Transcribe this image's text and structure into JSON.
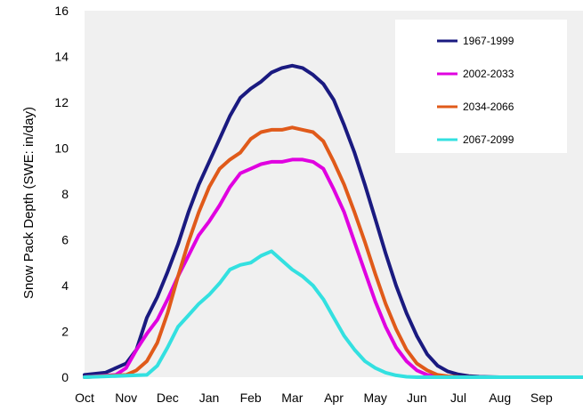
{
  "chart_data": {
    "type": "line",
    "title": "",
    "xlabel": "",
    "ylabel": "Snow Pack Depth (SWE: in/day)",
    "ylim": [
      0,
      16
    ],
    "xlim": [
      0,
      12
    ],
    "yticks": [
      0,
      2,
      4,
      6,
      8,
      10,
      12,
      14,
      16
    ],
    "xtick_labels": [
      "Oct",
      "Nov",
      "Dec",
      "Jan",
      "Feb",
      "Mar",
      "Apr",
      "May",
      "Jun",
      "Jul",
      "Aug",
      "Sep"
    ],
    "grid": false,
    "legend_position": "top-right",
    "plot_background": "#f0f0f0",
    "series": [
      {
        "name": "1967-1999",
        "color": "#1a1a80",
        "x": [
          0,
          0.5,
          1.0,
          1.25,
          1.5,
          1.75,
          2.0,
          2.25,
          2.5,
          2.75,
          3.0,
          3.25,
          3.5,
          3.75,
          4.0,
          4.25,
          4.5,
          4.75,
          5.0,
          5.25,
          5.5,
          5.75,
          6.0,
          6.25,
          6.5,
          6.75,
          7.0,
          7.25,
          7.5,
          7.75,
          8.0,
          8.25,
          8.5,
          8.75,
          9.0,
          9.25,
          9.5,
          10.0,
          10.5,
          11.0,
          12.0
        ],
        "y": [
          0.1,
          0.2,
          0.6,
          1.2,
          2.6,
          3.5,
          4.6,
          5.8,
          7.2,
          8.4,
          9.4,
          10.4,
          11.4,
          12.2,
          12.6,
          12.9,
          13.3,
          13.5,
          13.6,
          13.5,
          13.2,
          12.8,
          12.1,
          11.0,
          9.8,
          8.4,
          6.9,
          5.4,
          4.0,
          2.8,
          1.8,
          1.0,
          0.5,
          0.25,
          0.12,
          0.05,
          0.02,
          0,
          0,
          0,
          0
        ]
      },
      {
        "name": "2002-2033",
        "color": "#e000e0",
        "x": [
          0,
          0.75,
          1.0,
          1.25,
          1.5,
          1.75,
          2.0,
          2.25,
          2.5,
          2.75,
          3.0,
          3.25,
          3.5,
          3.75,
          4.0,
          4.25,
          4.5,
          4.75,
          5.0,
          5.25,
          5.5,
          5.75,
          6.0,
          6.25,
          6.5,
          6.75,
          7.0,
          7.25,
          7.5,
          7.75,
          8.0,
          8.25,
          8.5,
          9.0,
          12.0
        ],
        "y": [
          0,
          0.1,
          0.4,
          1.2,
          1.9,
          2.5,
          3.4,
          4.4,
          5.3,
          6.2,
          6.8,
          7.5,
          8.3,
          8.9,
          9.1,
          9.3,
          9.4,
          9.4,
          9.5,
          9.5,
          9.4,
          9.1,
          8.2,
          7.2,
          5.9,
          4.6,
          3.3,
          2.2,
          1.3,
          0.7,
          0.3,
          0.1,
          0.03,
          0,
          0
        ]
      },
      {
        "name": "2034-2066",
        "color": "#e05a1a",
        "x": [
          0,
          1.0,
          1.25,
          1.5,
          1.75,
          2.0,
          2.25,
          2.5,
          2.75,
          3.0,
          3.25,
          3.5,
          3.75,
          4.0,
          4.25,
          4.5,
          4.75,
          5.0,
          5.25,
          5.5,
          5.75,
          6.0,
          6.25,
          6.5,
          6.75,
          7.0,
          7.25,
          7.5,
          7.75,
          8.0,
          8.25,
          8.5,
          8.75,
          9.0,
          9.5,
          12.0
        ],
        "y": [
          0,
          0.1,
          0.3,
          0.7,
          1.5,
          2.8,
          4.4,
          5.9,
          7.2,
          8.3,
          9.1,
          9.5,
          9.8,
          10.4,
          10.7,
          10.8,
          10.8,
          10.9,
          10.8,
          10.7,
          10.3,
          9.4,
          8.4,
          7.2,
          5.9,
          4.5,
          3.2,
          2.1,
          1.2,
          0.6,
          0.3,
          0.1,
          0.04,
          0.01,
          0,
          0
        ]
      },
      {
        "name": "2067-2099",
        "color": "#33e0e0",
        "x": [
          0,
          1.5,
          1.75,
          2.0,
          2.25,
          2.5,
          2.75,
          3.0,
          3.25,
          3.5,
          3.75,
          4.0,
          4.25,
          4.5,
          4.75,
          5.0,
          5.25,
          5.5,
          5.75,
          6.0,
          6.25,
          6.5,
          6.75,
          7.0,
          7.25,
          7.5,
          7.75,
          8.0,
          8.5,
          12.0
        ],
        "y": [
          0,
          0.1,
          0.5,
          1.3,
          2.2,
          2.7,
          3.2,
          3.6,
          4.1,
          4.7,
          4.9,
          5.0,
          5.3,
          5.5,
          5.1,
          4.7,
          4.4,
          4.0,
          3.4,
          2.6,
          1.8,
          1.2,
          0.7,
          0.4,
          0.2,
          0.08,
          0.02,
          0,
          0,
          0
        ]
      }
    ]
  }
}
